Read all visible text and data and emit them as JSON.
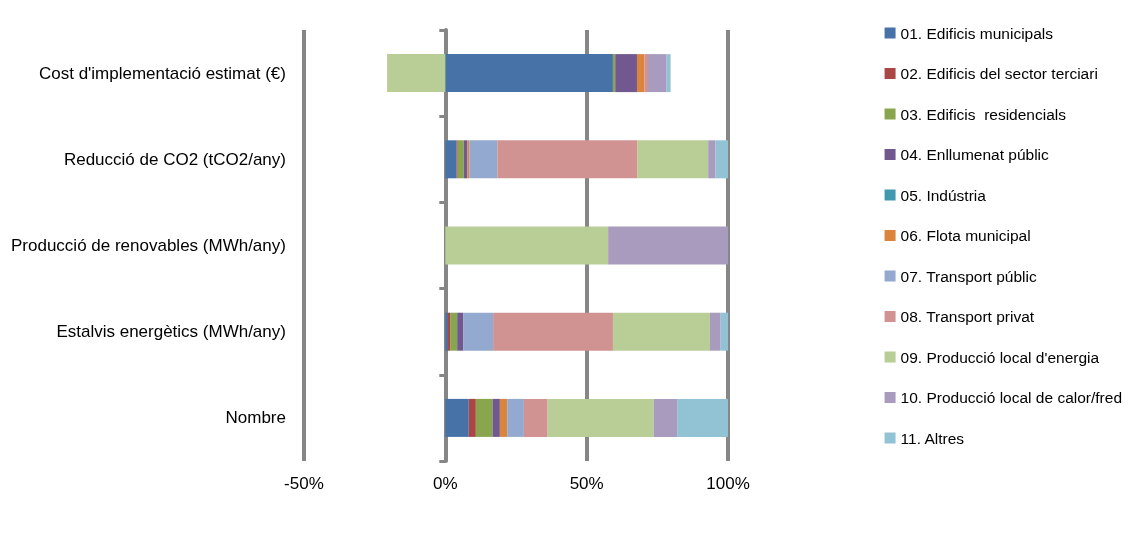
{
  "chart_data": {
    "type": "bar",
    "orientation": "horizontal",
    "stacked": true,
    "categories": [
      "Cost d'implementació estimat (€)",
      "Reducció de CO2 (tCO2/any)",
      "Producció de renovables (MWh/any)",
      "Estalvis energètics (MWh/any)",
      "Nombre"
    ],
    "series": [
      {
        "name": "01. Edificis municipals",
        "color": "#4672a8",
        "values": [
          59.3,
          4.0,
          0,
          0.9,
          8.3
        ]
      },
      {
        "name": "02. Edificis del sector terciari",
        "color": "#aa4643",
        "values": [
          0,
          0.4,
          0,
          0.8,
          2.5
        ]
      },
      {
        "name": "03. Edificis  residencials",
        "color": "#89a54e",
        "values": [
          0.8,
          2.1,
          0,
          2.5,
          5.9
        ]
      },
      {
        "name": "04. Enllumenat públic",
        "color": "#71588f",
        "values": [
          7.7,
          1.3,
          0,
          2.1,
          2.6
        ]
      },
      {
        "name": "05. Indústria",
        "color": "#4198af",
        "values": [
          0,
          0,
          0,
          0,
          0
        ]
      },
      {
        "name": "06. Flota municipal",
        "color": "#db843d",
        "values": [
          2.6,
          0.7,
          0,
          0,
          2.6
        ]
      },
      {
        "name": "07. Transport públic",
        "color": "#93a9cf",
        "values": [
          0,
          9.9,
          0,
          10.6,
          5.9
        ]
      },
      {
        "name": "08. Transport privat",
        "color": "#d19392",
        "values": [
          1.3,
          49.6,
          0,
          42.4,
          8.4
        ]
      },
      {
        "name": "09. Producció local d'energia",
        "color": "#b9cd96",
        "values": [
          -20.6,
          25,
          57.6,
          34.3,
          37.5
        ]
      },
      {
        "name": "10. Producció local de calor/fred",
        "color": "#a99bbd",
        "values": [
          6.6,
          2.6,
          42.4,
          3.8,
          8.3
        ]
      },
      {
        "name": "11. Altres",
        "color": "#92c3d5",
        "values": [
          1.4,
          4.4,
          0,
          2.6,
          18
        ]
      }
    ],
    "xlim": [
      -50,
      100
    ],
    "xticks": [
      {
        "value": -50,
        "label": "-50%"
      },
      {
        "value": 0,
        "label": "0%"
      },
      {
        "value": 50,
        "label": "50%"
      },
      {
        "value": 100,
        "label": "100%"
      }
    ],
    "grid": "x",
    "legend": "right"
  }
}
